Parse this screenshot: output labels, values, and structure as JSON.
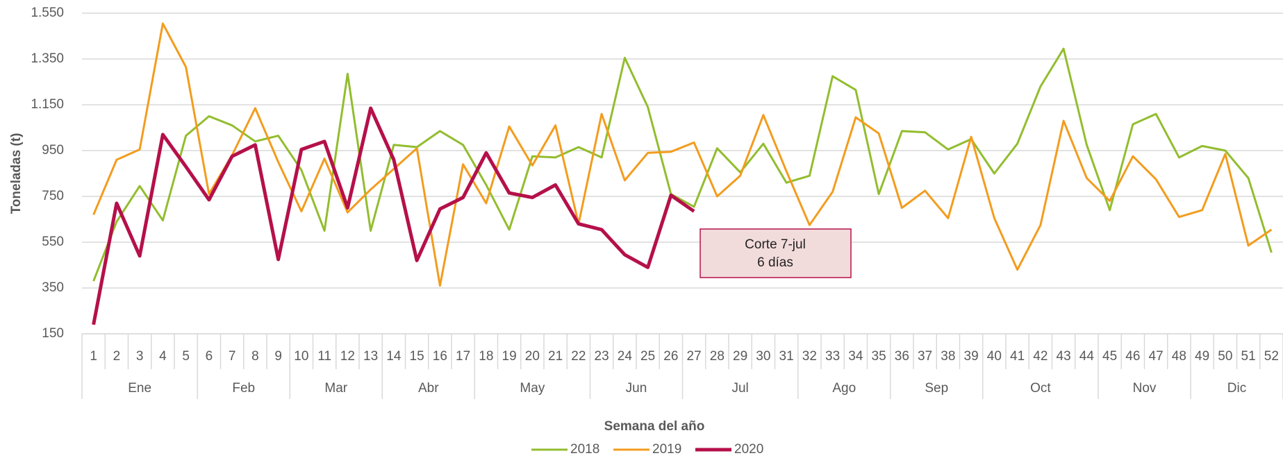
{
  "chart_data": {
    "type": "line",
    "y_label": "Toneladas (t)",
    "x_label": "Semana del año",
    "categories": [
      "1",
      "2",
      "3",
      "4",
      "5",
      "6",
      "7",
      "8",
      "9",
      "10",
      "11",
      "12",
      "13",
      "14",
      "15",
      "16",
      "17",
      "18",
      "19",
      "20",
      "21",
      "22",
      "23",
      "24",
      "25",
      "26",
      "27",
      "28",
      "29",
      "30",
      "31",
      "32",
      "33",
      "34",
      "35",
      "36",
      "37",
      "38",
      "39",
      "40",
      "41",
      "42",
      "43",
      "44",
      "45",
      "46",
      "47",
      "48",
      "49",
      "50",
      "51",
      "52"
    ],
    "month_groups": [
      {
        "name": "Ene",
        "weeks": 5
      },
      {
        "name": "Feb",
        "weeks": 4
      },
      {
        "name": "Mar",
        "weeks": 4
      },
      {
        "name": "Abr",
        "weeks": 4
      },
      {
        "name": "May",
        "weeks": 5
      },
      {
        "name": "Jun",
        "weeks": 4
      },
      {
        "name": "Jul",
        "weeks": 5
      },
      {
        "name": "Ago",
        "weeks": 4
      },
      {
        "name": "Sep",
        "weeks": 4
      },
      {
        "name": "Oct",
        "weeks": 5
      },
      {
        "name": "Nov",
        "weeks": 4
      },
      {
        "name": "Dic",
        "weeks": 4
      }
    ],
    "series": [
      {
        "name": "2018",
        "color": "#92bd2e",
        "values": [
          380,
          640,
          795,
          645,
          1015,
          1100,
          1060,
          990,
          1015,
          865,
          600,
          1285,
          600,
          975,
          965,
          1035,
          975,
          800,
          605,
          925,
          920,
          965,
          920,
          1355,
          1140,
          760,
          705,
          960,
          855,
          980,
          810,
          840,
          1275,
          1215,
          760,
          1035,
          1030,
          955,
          1000,
          850,
          980,
          1230,
          1395,
          975,
          690,
          1065,
          1110,
          920,
          970,
          950,
          830,
          505
        ]
      },
      {
        "name": "2019",
        "color": "#f39c1e",
        "values": [
          670,
          910,
          955,
          1505,
          1315,
          760,
          930,
          1135,
          900,
          685,
          915,
          680,
          780,
          870,
          960,
          360,
          890,
          720,
          1055,
          885,
          1060,
          630,
          1110,
          820,
          940,
          945,
          985,
          750,
          840,
          1105,
          860,
          625,
          770,
          1095,
          1025,
          700,
          775,
          655,
          1010,
          655,
          430,
          625,
          1080,
          830,
          730,
          925,
          825,
          660,
          690,
          935,
          535,
          605
        ]
      },
      {
        "name": "2020",
        "color": "#b5104a",
        "values": [
          190,
          720,
          490,
          1020,
          880,
          735,
          925,
          975,
          475,
          955,
          990,
          700,
          1135,
          910,
          470,
          695,
          745,
          940,
          765,
          745,
          800,
          630,
          605,
          495,
          440,
          755,
          685,
          null,
          null,
          null,
          null,
          null,
          null,
          null,
          null,
          null,
          null,
          null,
          null,
          null,
          null,
          null,
          null,
          null,
          null,
          null,
          null,
          null,
          null,
          null,
          null,
          null
        ]
      }
    ],
    "ylim": [
      150,
      1550
    ],
    "yticks": [
      150,
      350,
      550,
      750,
      950,
      {
        "value": 1150,
        "label": "1.150"
      },
      {
        "value": 1350,
        "label": "1.350"
      },
      {
        "value": 1550,
        "label": "1.550"
      }
    ],
    "grid": true,
    "annotation": [
      "Corte 7-jul",
      "6 días"
    ],
    "legend": "bottom"
  }
}
